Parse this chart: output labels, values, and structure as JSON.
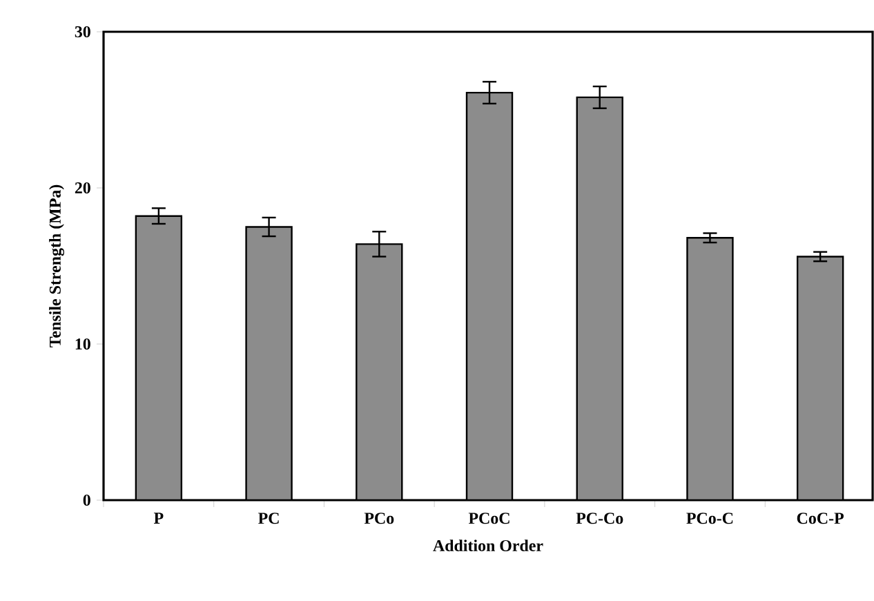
{
  "chart_data": {
    "type": "bar",
    "xlabel": "Addition Order",
    "ylabel": "Tensile Strength (MPa)",
    "categories": [
      "P",
      "PC",
      "PCo",
      "PCoC",
      "PC-Co",
      "PCo-C",
      "CoC-P"
    ],
    "values": [
      18.2,
      17.5,
      16.4,
      26.1,
      25.8,
      16.8,
      15.6
    ],
    "errors": [
      0.5,
      0.6,
      0.8,
      0.7,
      0.7,
      0.3,
      0.3
    ],
    "color": "#8c8c8c",
    "ylim": [
      0,
      30
    ],
    "yticks": [
      0,
      10,
      20,
      30
    ]
  }
}
